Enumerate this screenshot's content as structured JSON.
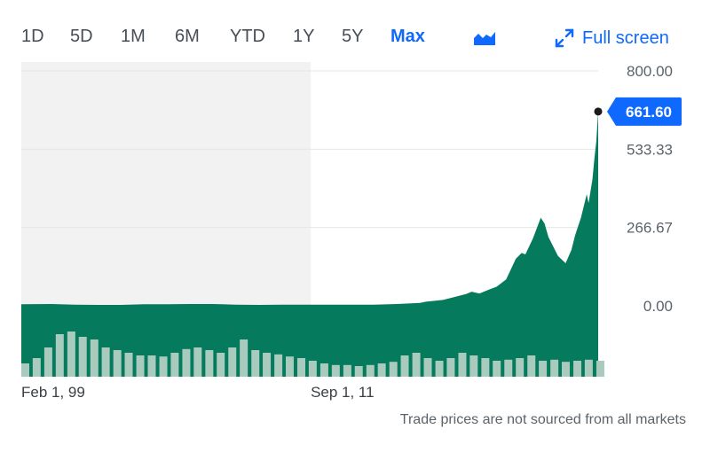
{
  "toolbar": {
    "ranges": [
      "1D",
      "5D",
      "1M",
      "6M",
      "YTD",
      "1Y",
      "5Y",
      "Max"
    ],
    "active_range": "Max",
    "chart_type_icon": "mountain-chart-icon",
    "fullscreen_icon": "expand-arrows-icon",
    "fullscreen_label": "Full screen"
  },
  "footnote": "Trade prices are not sourced from all markets",
  "colors": {
    "accent": "#0f69ff",
    "area_fill": "#057a5d",
    "volume": "#a8cbbd",
    "pre_region": "#f2f2f2",
    "grid": "#e6e6e6",
    "axis_text": "#5b636a"
  },
  "chart_data": {
    "type": "area",
    "title": "",
    "xlabel": "",
    "ylabel": "",
    "ylim": [
      0,
      800
    ],
    "y_ticks": [
      "800.00",
      "533.33",
      "266.67",
      "0.00"
    ],
    "x_tick_labels": [
      "Feb 1, 99",
      "Sep 1, 11"
    ],
    "x_range": [
      "1999-02-01",
      "2024-03-01"
    ],
    "shaded_until": "2011-09-01",
    "last_price": 661.6,
    "last_price_label": "661.60",
    "grid": true,
    "series": [
      {
        "x": [
          "1999-02-01",
          "2000-06-01",
          "2001-06-01",
          "2002-06-01",
          "2003-06-01",
          "2004-06-01",
          "2005-06-01",
          "2006-06-01",
          "2007-06-01",
          "2008-06-01",
          "2009-06-01",
          "2010-06-01",
          "2011-06-01",
          "2012-06-01",
          "2013-06-01",
          "2014-06-01",
          "2015-06-01",
          "2016-06-01",
          "2016-09-01",
          "2017-06-01",
          "2018-06-01",
          "2018-09-01",
          "2019-01-01",
          "2019-06-01",
          "2019-10-01",
          "2020-03-01",
          "2020-08-01",
          "2020-11-01",
          "2021-01-01",
          "2021-05-01",
          "2021-09-01",
          "2021-11-01",
          "2022-01-01",
          "2022-06-01",
          "2022-10-01",
          "2023-01-01",
          "2023-03-01",
          "2023-06-01",
          "2023-09-01",
          "2023-10-01",
          "2023-12-01",
          "2024-01-01",
          "2024-02-01",
          "2024-03-01"
        ],
        "y": [
          5,
          6,
          4,
          3,
          3,
          5,
          5,
          6,
          6,
          4,
          3,
          4,
          4,
          4,
          4,
          4,
          6,
          10,
          14,
          20,
          40,
          48,
          42,
          55,
          65,
          90,
          160,
          180,
          175,
          230,
          300,
          280,
          235,
          170,
          145,
          190,
          240,
          300,
          380,
          350,
          430,
          500,
          560,
          661.6
        ]
      }
    ],
    "volume": {
      "x": [
        "1999-02-01",
        "1999-08-01",
        "2000-02-01",
        "2000-08-01",
        "2001-02-01",
        "2001-08-01",
        "2002-02-01",
        "2002-08-01",
        "2003-02-01",
        "2003-08-01",
        "2004-02-01",
        "2004-08-01",
        "2005-02-01",
        "2005-08-01",
        "2006-02-01",
        "2006-08-01",
        "2007-02-01",
        "2007-08-01",
        "2008-02-01",
        "2008-08-01",
        "2009-02-01",
        "2009-08-01",
        "2010-02-01",
        "2010-08-01",
        "2011-02-01",
        "2011-08-01",
        "2012-02-01",
        "2012-08-01",
        "2013-02-01",
        "2013-08-01",
        "2014-02-01",
        "2014-08-01",
        "2015-02-01",
        "2015-08-01",
        "2016-02-01",
        "2016-08-01",
        "2017-02-01",
        "2017-08-01",
        "2018-02-01",
        "2018-08-01",
        "2019-02-01",
        "2019-08-01",
        "2020-02-01",
        "2020-08-01",
        "2021-02-01",
        "2021-08-01",
        "2022-02-01",
        "2022-08-01",
        "2023-02-01",
        "2023-08-01",
        "2024-02-01"
      ],
      "relative": [
        0.25,
        0.35,
        0.55,
        0.8,
        0.85,
        0.75,
        0.7,
        0.55,
        0.5,
        0.45,
        0.4,
        0.4,
        0.38,
        0.45,
        0.52,
        0.55,
        0.5,
        0.45,
        0.55,
        0.7,
        0.5,
        0.45,
        0.42,
        0.38,
        0.35,
        0.3,
        0.25,
        0.22,
        0.22,
        0.2,
        0.22,
        0.25,
        0.28,
        0.4,
        0.45,
        0.35,
        0.3,
        0.35,
        0.45,
        0.4,
        0.35,
        0.3,
        0.32,
        0.35,
        0.4,
        0.3,
        0.32,
        0.28,
        0.3,
        0.32,
        0.3
      ]
    }
  }
}
